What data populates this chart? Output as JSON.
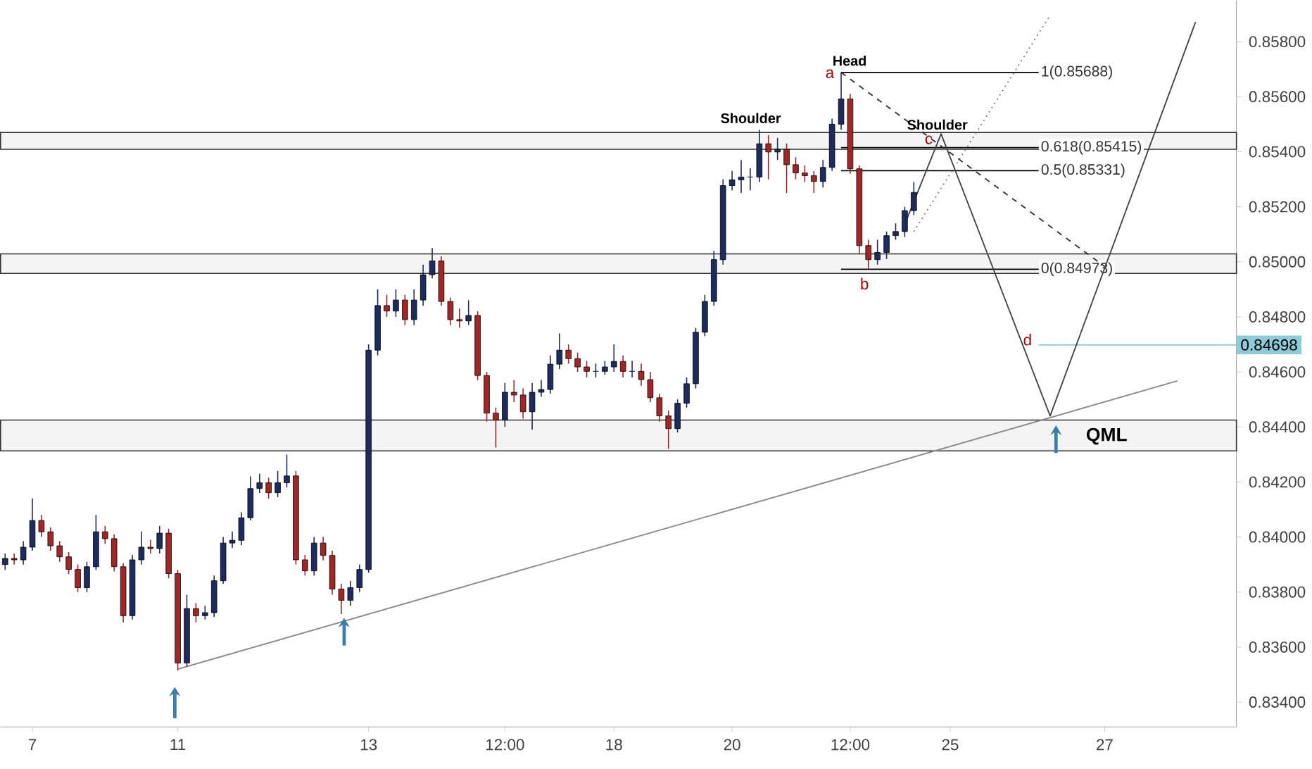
{
  "chart_data": {
    "type": "candlestick",
    "categories": [
      null,
      null,
      null,
      "7",
      null,
      null,
      null,
      null,
      null,
      null,
      null,
      null,
      null,
      null,
      null,
      null,
      null,
      null,
      null,
      "11",
      null,
      null,
      null,
      null,
      null,
      null,
      null,
      null,
      null,
      null,
      null,
      null,
      null,
      null,
      null,
      null,
      null,
      null,
      null,
      null,
      "13",
      null,
      null,
      null,
      null,
      null,
      null,
      null,
      null,
      null,
      null,
      null,
      null,
      null,
      null,
      "12:00",
      null,
      null,
      null,
      null,
      null,
      null,
      null,
      null,
      null,
      null,
      null,
      "18",
      null,
      null,
      null,
      null,
      null,
      null,
      null,
      null,
      null,
      null,
      null,
      null,
      "20",
      null,
      null,
      null,
      null,
      null,
      null,
      null,
      null,
      null,
      null,
      null,
      null,
      "12:00",
      null,
      null,
      null,
      null,
      null,
      null,
      null,
      null,
      null,
      null,
      "25",
      null,
      null,
      null,
      null,
      null,
      null,
      null,
      null,
      null,
      null,
      null,
      null,
      null,
      null,
      null,
      null,
      "27",
      null,
      null,
      null,
      null,
      null,
      null,
      null,
      null,
      null,
      null,
      null,
      null,
      null,
      null
    ],
    "ohlc": [
      [
        0.839,
        0.8394,
        0.8388,
        0.83922
      ],
      [
        0.83922,
        0.8394,
        0.839,
        0.83917
      ],
      [
        0.83917,
        0.83985,
        0.839,
        0.83963
      ],
      [
        0.83963,
        0.8414,
        0.8395,
        0.8406
      ],
      [
        0.8406,
        0.8408,
        0.84,
        0.84019
      ],
      [
        0.84019,
        0.84035,
        0.8395,
        0.83968
      ],
      [
        0.83968,
        0.83985,
        0.8391,
        0.83928
      ],
      [
        0.83928,
        0.83945,
        0.83865,
        0.83882
      ],
      [
        0.83882,
        0.839,
        0.838,
        0.83816
      ],
      [
        0.83816,
        0.8391,
        0.838,
        0.83892
      ],
      [
        0.83892,
        0.8408,
        0.8388,
        0.84019
      ],
      [
        0.84019,
        0.8404,
        0.83975,
        0.83994
      ],
      [
        0.83994,
        0.8401,
        0.83875,
        0.83892
      ],
      [
        0.83892,
        0.83905,
        0.8369,
        0.83714
      ],
      [
        0.83714,
        0.83935,
        0.837,
        0.83917
      ],
      [
        0.83917,
        0.8402,
        0.839,
        0.83963
      ],
      [
        0.83963,
        0.8399,
        0.8394,
        0.83958
      ],
      [
        0.83958,
        0.8404,
        0.8394,
        0.84014
      ],
      [
        0.84014,
        0.8403,
        0.8385,
        0.83867
      ],
      [
        0.83867,
        0.8388,
        0.83515,
        0.83542
      ],
      [
        0.83542,
        0.8379,
        0.8353,
        0.8374
      ],
      [
        0.8374,
        0.8376,
        0.8369,
        0.83714
      ],
      [
        0.83714,
        0.8375,
        0.837,
        0.83725
      ],
      [
        0.83725,
        0.8386,
        0.8371,
        0.83841
      ],
      [
        0.83841,
        0.84,
        0.8383,
        0.83978
      ],
      [
        0.83978,
        0.8402,
        0.8396,
        0.83988
      ],
      [
        0.83988,
        0.8409,
        0.8397,
        0.8407
      ],
      [
        0.8407,
        0.8422,
        0.8406,
        0.84176
      ],
      [
        0.84176,
        0.8423,
        0.8416,
        0.84197
      ],
      [
        0.84197,
        0.84215,
        0.8414,
        0.84161
      ],
      [
        0.84161,
        0.8424,
        0.84145,
        0.84197
      ],
      [
        0.84197,
        0.843,
        0.8418,
        0.84222
      ],
      [
        0.84222,
        0.8424,
        0.839,
        0.83917
      ],
      [
        0.83917,
        0.83935,
        0.8386,
        0.83877
      ],
      [
        0.83877,
        0.84,
        0.8386,
        0.83978
      ],
      [
        0.83978,
        0.84,
        0.83915,
        0.83933
      ],
      [
        0.83933,
        0.8395,
        0.8379,
        0.83811
      ],
      [
        0.83811,
        0.8383,
        0.8372,
        0.8377
      ],
      [
        0.8377,
        0.8384,
        0.8375,
        0.83816
      ],
      [
        0.83816,
        0.839,
        0.838,
        0.83882
      ],
      [
        0.83882,
        0.847,
        0.8387,
        0.84679
      ],
      [
        0.84679,
        0.849,
        0.8466,
        0.84841
      ],
      [
        0.84841,
        0.8488,
        0.848,
        0.84821
      ],
      [
        0.84821,
        0.849,
        0.848,
        0.84861
      ],
      [
        0.84861,
        0.8488,
        0.8477,
        0.8479
      ],
      [
        0.8479,
        0.849,
        0.8477,
        0.84861
      ],
      [
        0.84861,
        0.8499,
        0.8484,
        0.84953
      ],
      [
        0.84953,
        0.8505,
        0.8494,
        0.85003
      ],
      [
        0.85003,
        0.8502,
        0.8484,
        0.84856
      ],
      [
        0.84856,
        0.8487,
        0.8477,
        0.8479
      ],
      [
        0.8479,
        0.8483,
        0.8476,
        0.84785
      ],
      [
        0.84785,
        0.8486,
        0.8477,
        0.84805
      ],
      [
        0.84805,
        0.8482,
        0.8457,
        0.84587
      ],
      [
        0.84587,
        0.846,
        0.8442,
        0.8445
      ],
      [
        0.8445,
        0.8447,
        0.84325,
        0.84425
      ],
      [
        0.84425,
        0.8456,
        0.844,
        0.84526
      ],
      [
        0.84526,
        0.8457,
        0.8449,
        0.84516
      ],
      [
        0.84516,
        0.8454,
        0.8443,
        0.84455
      ],
      [
        0.84455,
        0.8456,
        0.8439,
        0.84526
      ],
      [
        0.84526,
        0.8457,
        0.8451,
        0.84536
      ],
      [
        0.84536,
        0.8466,
        0.8452,
        0.84628
      ],
      [
        0.84628,
        0.8474,
        0.8461,
        0.84679
      ],
      [
        0.84679,
        0.847,
        0.8463,
        0.84648
      ],
      [
        0.84648,
        0.8467,
        0.846,
        0.84618
      ],
      [
        0.84618,
        0.8464,
        0.8458,
        0.84602
      ],
      [
        0.84602,
        0.8463,
        0.8458,
        0.84602
      ],
      [
        0.84602,
        0.8464,
        0.8459,
        0.84618
      ],
      [
        0.84618,
        0.847,
        0.846,
        0.84638
      ],
      [
        0.84638,
        0.8466,
        0.8458,
        0.84602
      ],
      [
        0.84602,
        0.8464,
        0.8458,
        0.84602
      ],
      [
        0.84602,
        0.8463,
        0.8455,
        0.84572
      ],
      [
        0.84572,
        0.846,
        0.8449,
        0.84506
      ],
      [
        0.84506,
        0.8452,
        0.8442,
        0.8444
      ],
      [
        0.8444,
        0.8446,
        0.8432,
        0.84394
      ],
      [
        0.84394,
        0.845,
        0.8438,
        0.84486
      ],
      [
        0.84486,
        0.8458,
        0.8447,
        0.84557
      ],
      [
        0.84557,
        0.8476,
        0.8454,
        0.84744
      ],
      [
        0.84744,
        0.8488,
        0.8473,
        0.84856
      ],
      [
        0.84856,
        0.8504,
        0.8484,
        0.85008
      ],
      [
        0.85008,
        0.853,
        0.8499,
        0.85277
      ],
      [
        0.85277,
        0.8533,
        0.8526,
        0.85298
      ],
      [
        0.85298,
        0.8537,
        0.8525,
        0.85308
      ],
      [
        0.85308,
        0.8534,
        0.8526,
        0.85308
      ],
      [
        0.85308,
        0.8548,
        0.8529,
        0.85429
      ],
      [
        0.85429,
        0.8546,
        0.853,
        0.85399
      ],
      [
        0.85399,
        0.8545,
        0.8537,
        0.85409
      ],
      [
        0.85409,
        0.8543,
        0.8525,
        0.85353
      ],
      [
        0.85353,
        0.8538,
        0.853,
        0.85323
      ],
      [
        0.85323,
        0.8535,
        0.8529,
        0.85313
      ],
      [
        0.85313,
        0.8533,
        0.8525,
        0.85292
      ],
      [
        0.85292,
        0.8537,
        0.8527,
        0.85343
      ],
      [
        0.85343,
        0.8552,
        0.8533,
        0.855
      ],
      [
        0.855,
        0.85688,
        0.8548,
        0.85592
      ],
      [
        0.85592,
        0.8561,
        0.8532,
        0.85338
      ],
      [
        0.85338,
        0.8535,
        0.8503,
        0.85059
      ],
      [
        0.85059,
        0.8508,
        0.84973,
        0.85008
      ],
      [
        0.85008,
        0.8508,
        0.8499,
        0.85034
      ],
      [
        0.85034,
        0.8511,
        0.8501,
        0.85095
      ],
      [
        0.85095,
        0.8514,
        0.8508,
        0.8511
      ],
      [
        0.8511,
        0.852,
        0.8509,
        0.85186
      ],
      [
        0.85186,
        0.8529,
        0.8517,
        0.85252
      ],
      null,
      null,
      null,
      null,
      null,
      null,
      null,
      null,
      null,
      null,
      null,
      null,
      null,
      null,
      null,
      null,
      null,
      null,
      null,
      null,
      null,
      null,
      null,
      null,
      null,
      null,
      null,
      null,
      null,
      null,
      null,
      null,
      null,
      null,
      null
    ],
    "colors": [
      "#1e2b5e",
      "#a32626",
      "#1e2b5e",
      "#1e2b5e",
      "#a32626",
      "#a32626",
      "#a32626",
      "#a32626",
      "#a32626",
      "#1e2b5e",
      "#1e2b5e",
      "#a32626",
      "#a32626",
      "#a32626",
      "#1e2b5e",
      "#1e2b5e",
      "#a32626",
      "#1e2b5e",
      "#a32626",
      "#a32626",
      "#1e2b5e",
      "#a32626",
      "#1e2b5e",
      "#1e2b5e",
      "#1e2b5e",
      "#1e2b5e",
      "#1e2b5e",
      "#1e2b5e",
      "#1e2b5e",
      "#a32626",
      "#1e2b5e",
      "#1e2b5e",
      "#a32626",
      "#a32626",
      "#1e2b5e",
      "#a32626",
      "#a32626",
      "#a32626",
      "#1e2b5e",
      "#1e2b5e",
      "#1e2b5e",
      "#1e2b5e",
      "#a32626",
      "#1e2b5e",
      "#a32626",
      "#1e2b5e",
      "#1e2b5e",
      "#1e2b5e",
      "#a32626",
      "#a32626",
      "#a32626",
      "#1e2b5e",
      "#a32626",
      "#a32626",
      "#a32626",
      "#1e2b5e",
      "#a32626",
      "#a32626",
      "#1e2b5e",
      "#1e2b5e",
      "#1e2b5e",
      "#1e2b5e",
      "#a32626",
      "#a32626",
      "#a32626",
      "#1e2b5e",
      "#1e2b5e",
      "#1e2b5e",
      "#a32626",
      "#1e2b5e",
      "#a32626",
      "#a32626",
      "#a32626",
      "#a32626",
      "#1e2b5e",
      "#1e2b5e",
      "#1e2b5e",
      "#1e2b5e",
      "#1e2b5e",
      "#1e2b5e",
      "#1e2b5e",
      "#1e2b5e",
      "#1e2b5e",
      "#1e2b5e",
      "#a32626",
      "#1e2b5e",
      "#a32626",
      "#a32626",
      "#a32626",
      "#a32626",
      "#1e2b5e",
      "#1e2b5e",
      "#1e2b5e",
      "#a32626",
      "#a32626",
      "#a32626",
      "#1e2b5e",
      "#1e2b5e",
      "#1e2b5e",
      "#1e2b5e",
      "#1e2b5e",
      null,
      null,
      null,
      null,
      null,
      null,
      null,
      null,
      null,
      null,
      null,
      null,
      null,
      null,
      null,
      null,
      null,
      null,
      null,
      null,
      null,
      null,
      null,
      null,
      null,
      null,
      null,
      null,
      null,
      null,
      null,
      null,
      null,
      null,
      null
    ],
    "series": [
      {
        "type": "line",
        "color": "#8a8a8a",
        "line_style": "solid",
        "values": [
          null,
          null,
          null,
          null,
          null,
          null,
          null,
          null,
          null,
          null,
          null,
          null,
          null,
          null,
          null,
          null,
          null,
          null,
          null,
          0.8352,
          null,
          null,
          null,
          null,
          null,
          null,
          null,
          null,
          null,
          null,
          null,
          null,
          null,
          null,
          null,
          null,
          null,
          null,
          null,
          null,
          null,
          null,
          null,
          null,
          null,
          null,
          null,
          null,
          null,
          null,
          null,
          null,
          null,
          null,
          null,
          null,
          null,
          null,
          null,
          null,
          null,
          null,
          null,
          null,
          null,
          null,
          null,
          null,
          null,
          null,
          null,
          null,
          null,
          null,
          null,
          null,
          null,
          null,
          null,
          null,
          null,
          null,
          null,
          null,
          null,
          null,
          null,
          null,
          null,
          null,
          null,
          null,
          null,
          null,
          null,
          null,
          null,
          null,
          null,
          null,
          null,
          null,
          null,
          null,
          null,
          null,
          null,
          null,
          null,
          null,
          null,
          null,
          null,
          null,
          null,
          null,
          null,
          null,
          null,
          null,
          null,
          null,
          null,
          null,
          null,
          null,
          null,
          null,
          null,
          0.84567,
          null,
          null,
          null,
          null,
          null,
          null
        ]
      },
      {
        "type": "line",
        "color": "#333333",
        "line_style": "dashed",
        "values": [
          null,
          null,
          null,
          null,
          null,
          null,
          null,
          null,
          null,
          null,
          null,
          null,
          null,
          null,
          null,
          null,
          null,
          null,
          null,
          null,
          null,
          null,
          null,
          null,
          null,
          null,
          null,
          null,
          null,
          null,
          null,
          null,
          null,
          null,
          null,
          null,
          null,
          null,
          null,
          null,
          null,
          null,
          null,
          null,
          null,
          null,
          null,
          null,
          null,
          null,
          null,
          null,
          null,
          null,
          null,
          null,
          null,
          null,
          null,
          null,
          null,
          null,
          null,
          null,
          null,
          null,
          null,
          null,
          null,
          null,
          null,
          null,
          null,
          null,
          null,
          null,
          null,
          null,
          null,
          null,
          null,
          null,
          null,
          null,
          null,
          null,
          null,
          null,
          null,
          null,
          null,
          null,
          0.85688,
          null,
          null,
          null,
          null,
          null,
          null,
          null,
          null,
          null,
          null,
          null,
          null,
          null,
          null,
          null,
          null,
          null,
          null,
          null,
          null,
          null,
          null,
          null,
          null,
          null,
          null,
          null,
          null,
          0.84983,
          null,
          null,
          null,
          null,
          null,
          null,
          null,
          null,
          null,
          null,
          null,
          null,
          null,
          null
        ]
      },
      {
        "type": "line",
        "color": "#444444",
        "line_style": "solid",
        "values": [
          null,
          null,
          null,
          null,
          null,
          null,
          null,
          null,
          null,
          null,
          null,
          null,
          null,
          null,
          null,
          null,
          null,
          null,
          null,
          null,
          null,
          null,
          null,
          null,
          null,
          null,
          null,
          null,
          null,
          null,
          null,
          null,
          null,
          null,
          null,
          null,
          null,
          null,
          null,
          null,
          null,
          null,
          null,
          null,
          null,
          null,
          null,
          null,
          null,
          null,
          null,
          null,
          null,
          null,
          null,
          null,
          null,
          null,
          null,
          null,
          null,
          null,
          null,
          null,
          null,
          null,
          null,
          null,
          null,
          null,
          null,
          null,
          null,
          null,
          null,
          null,
          null,
          null,
          null,
          null,
          null,
          null,
          null,
          null,
          null,
          null,
          null,
          null,
          null,
          null,
          null,
          null,
          null,
          null,
          null,
          null,
          null,
          null,
          null,
          0.85136,
          null,
          null,
          null,
          0.85465,
          null,
          null,
          null,
          null,
          null,
          null,
          null,
          null,
          null,
          null,
          null,
          0.8444,
          null,
          null,
          null,
          null,
          null,
          null,
          null,
          null,
          null,
          null,
          null,
          null,
          null,
          null,
          null,
          0.85871,
          null,
          null,
          null,
          null
        ]
      },
      {
        "type": "line",
        "color": "#777777",
        "line_style": "dotted",
        "values": [
          null,
          null,
          null,
          null,
          null,
          null,
          null,
          null,
          null,
          null,
          null,
          null,
          null,
          null,
          null,
          null,
          null,
          null,
          null,
          null,
          null,
          null,
          null,
          null,
          null,
          null,
          null,
          null,
          null,
          null,
          null,
          null,
          null,
          null,
          null,
          null,
          null,
          null,
          null,
          null,
          null,
          null,
          null,
          null,
          null,
          null,
          null,
          null,
          null,
          null,
          null,
          null,
          null,
          null,
          null,
          null,
          null,
          null,
          null,
          null,
          null,
          null,
          null,
          null,
          null,
          null,
          null,
          null,
          null,
          null,
          null,
          null,
          null,
          null,
          null,
          null,
          null,
          null,
          null,
          null,
          null,
          null,
          null,
          null,
          null,
          null,
          null,
          null,
          null,
          null,
          null,
          null,
          null,
          null,
          null,
          null,
          null,
          null,
          null,
          null,
          0.8511,
          null,
          null,
          null,
          null,
          null,
          null,
          null,
          null,
          null,
          null,
          null,
          null,
          null,
          null,
          0.85896,
          null,
          null,
          null,
          null,
          null,
          null,
          null,
          null,
          null,
          null,
          null,
          null,
          null,
          null,
          null,
          null,
          null,
          null,
          null,
          null
        ]
      }
    ],
    "ylim": [
      0.8331,
      0.8595
    ],
    "yticks": [
      {
        "value": 0.834,
        "label": "0.83400"
      },
      {
        "value": 0.836,
        "label": "0.83600"
      },
      {
        "value": 0.838,
        "label": "0.83800"
      },
      {
        "value": 0.84,
        "label": "0.84000"
      },
      {
        "value": 0.842,
        "label": "0.84200"
      },
      {
        "value": 0.844,
        "label": "0.84400"
      },
      {
        "value": 0.846,
        "label": "0.84600"
      },
      {
        "value": 0.848,
        "label": "0.84800"
      },
      {
        "value": 0.85,
        "label": "0.85000"
      },
      {
        "value": 0.852,
        "label": "0.85200"
      },
      {
        "value": 0.854,
        "label": "0.85400"
      },
      {
        "value": 0.856,
        "label": "0.85600"
      },
      {
        "value": 0.858,
        "label": "0.85800"
      }
    ],
    "bands": [
      {
        "axis": "y",
        "from": 0.84313,
        "to": 0.84425,
        "color": "#f4f4f4"
      },
      {
        "axis": "y",
        "from": 0.84958,
        "to": 0.85029,
        "color": "#f4f4f4"
      },
      {
        "axis": "y",
        "from": 0.85409,
        "to": 0.8547,
        "color": "#f4f4f4"
      }
    ],
    "ref_lines": [
      {
        "axis": "y",
        "value": 0.85688,
        "label": "1(0.85688)"
      },
      {
        "axis": "y",
        "value": 0.85415,
        "label": "0.618(0.85415)"
      },
      {
        "axis": "y",
        "value": 0.85331,
        "label": "0.5(0.85331)"
      },
      {
        "axis": "y",
        "value": 0.84973,
        "label": "0(0.84973)"
      },
      {
        "axis": "y",
        "value": 0.84698,
        "label": "0.84698",
        "color": "#8ccbd9"
      }
    ],
    "annotations": [
      "Head",
      "Shoulder",
      "Shoulder",
      "a",
      "b",
      "c",
      "d",
      "QML"
    ]
  }
}
